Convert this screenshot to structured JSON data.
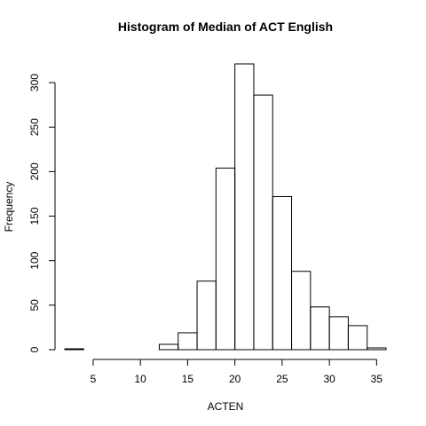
{
  "chart_data": {
    "type": "bar",
    "title": "Histogram of Median of ACT English",
    "xlabel": "ACTEN",
    "ylabel": "Frequency",
    "bin_edges": [
      2,
      4,
      6,
      8,
      10,
      12,
      14,
      16,
      18,
      20,
      22,
      24,
      26,
      28,
      30,
      32,
      34,
      36
    ],
    "values": [
      1,
      0,
      0,
      0,
      0,
      6,
      19,
      77,
      204,
      321,
      286,
      172,
      88,
      48,
      37,
      27,
      2
    ],
    "xticks": [
      5,
      10,
      15,
      20,
      25,
      30,
      35
    ],
    "yticks": [
      0,
      50,
      100,
      150,
      200,
      250,
      300
    ],
    "xlim": [
      2,
      36
    ],
    "ylim": [
      0,
      321
    ],
    "grid": false,
    "legend": "none"
  }
}
